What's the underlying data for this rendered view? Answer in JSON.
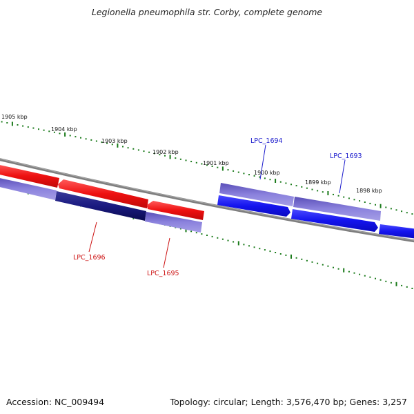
{
  "title": "Legionella pneumophila str. Corby, complete genome",
  "footer": {
    "accession": "Accession: NC_009494",
    "summary": "Topology: circular; Length: 3,576,470 bp; Genes: 3,257"
  },
  "colors": {
    "backbone": "#7f7f7f",
    "tick": "#1a7a1a",
    "forward_gene": "#1414ee",
    "reverse_gene": "#ee1010",
    "cds_forward": "#7a6fd6",
    "cds_reverse": "#1a1a80",
    "label_forward": "#1a1acc",
    "label_reverse": "#cc1010"
  },
  "ticks": [
    "1905 kbp",
    "1904 kbp",
    "1903 kbp",
    "1902 kbp",
    "1901 kbp",
    "1900 kbp",
    "1899 kbp",
    "1898 kbp"
  ],
  "genes": [
    {
      "label": "LPC_1696",
      "strand": "reverse",
      "color_key": "reverse"
    },
    {
      "label": "LPC_1695",
      "strand": "reverse",
      "color_key": "reverse"
    },
    {
      "label": "LPC_1694",
      "strand": "forward",
      "color_key": "forward"
    },
    {
      "label": "LPC_1693",
      "strand": "forward",
      "color_key": "forward"
    }
  ]
}
